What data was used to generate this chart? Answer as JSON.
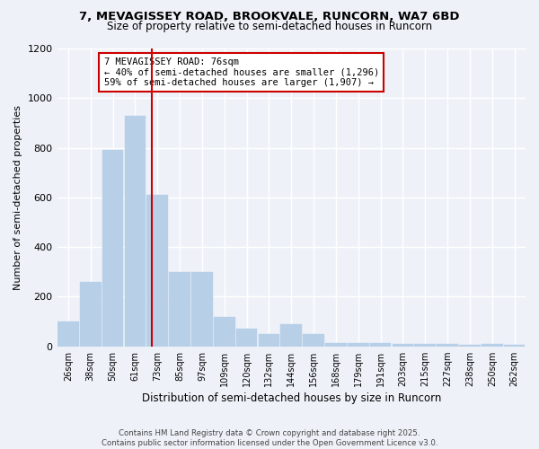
{
  "title_line1": "7, MEVAGISSEY ROAD, BROOKVALE, RUNCORN, WA7 6BD",
  "title_line2": "Size of property relative to semi-detached houses in Runcorn",
  "xlabel": "Distribution of semi-detached houses by size in Runcorn",
  "ylabel": "Number of semi-detached properties",
  "categories": [
    "26sqm",
    "38sqm",
    "50sqm",
    "61sqm",
    "73sqm",
    "85sqm",
    "97sqm",
    "109sqm",
    "120sqm",
    "132sqm",
    "144sqm",
    "156sqm",
    "168sqm",
    "179sqm",
    "191sqm",
    "203sqm",
    "215sqm",
    "227sqm",
    "238sqm",
    "250sqm",
    "262sqm"
  ],
  "values": [
    100,
    260,
    790,
    930,
    610,
    300,
    300,
    120,
    70,
    50,
    90,
    50,
    15,
    15,
    15,
    10,
    10,
    8,
    5,
    8,
    5
  ],
  "bar_color": "#b8cfe8",
  "bar_edgecolor": "#b8cfe8",
  "vline_color": "#cc0000",
  "vline_pos": 3.75,
  "annotation_title": "7 MEVAGISSEY ROAD: 76sqm",
  "annotation_line1": "← 40% of semi-detached houses are smaller (1,296)",
  "annotation_line2": "59% of semi-detached houses are larger (1,907) →",
  "annotation_box_color": "white",
  "annotation_box_edgecolor": "#cc0000",
  "footer_line1": "Contains HM Land Registry data © Crown copyright and database right 2025.",
  "footer_line2": "Contains public sector information licensed under the Open Government Licence v3.0.",
  "ylim": [
    0,
    1200
  ],
  "yticks": [
    0,
    200,
    400,
    600,
    800,
    1000,
    1200
  ],
  "bg_color": "#eef2f8",
  "grid_color": "white",
  "title_fontsize": 9.5,
  "subtitle_fontsize": 8.5
}
